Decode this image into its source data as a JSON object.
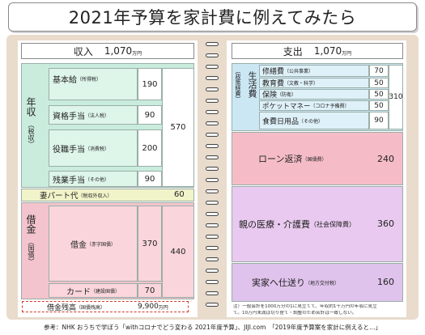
{
  "title": "2021年予算を家計費に例えてみたら",
  "income": {
    "header_label": "収入",
    "header_amount": "1,070",
    "unit": "万円",
    "section_annual": "年収",
    "section_annual_sub": "（税収）",
    "items": [
      {
        "label": "基本給",
        "note": "（所得税）",
        "value": "190"
      },
      {
        "label": "資格手当",
        "note": "（法人税）",
        "value": "90"
      },
      {
        "label": "役職手当",
        "note": "（消費税）",
        "value": "200"
      },
      {
        "label": "残業手当",
        "note": "（その他）",
        "value": "90"
      }
    ],
    "annual_total": "570",
    "part_label": "妻パート代",
    "part_note": "（税収外収入）",
    "part_value": "60",
    "debt_section": "借金",
    "debt_section_sub": "（国債）",
    "loan_label": "借金",
    "loan_note": "（赤字国債）",
    "loan_value": "370",
    "card_label": "カード",
    "card_note": "（建設国債）",
    "card_value": "70",
    "debt_total": "440",
    "balance_label": "借金残高",
    "balance_note": "（国債残高）",
    "balance_value": "9,900",
    "balance_unit": "万円"
  },
  "expense": {
    "header_label": "支出",
    "header_amount": "1,070",
    "unit": "万円",
    "living_section": "生活費",
    "living_section_sub": "（政策経費）",
    "living_items": [
      {
        "label": "修繕費",
        "note": "（公共事業）",
        "value": "70"
      },
      {
        "label": "教育費",
        "note": "（文教・科学）",
        "value": "50"
      },
      {
        "label": "保険",
        "note": "（防衛）",
        "value": "50"
      },
      {
        "label": "ポケットマネー",
        "note": "（コロナ予備費）",
        "value": "50"
      },
      {
        "label": "食費日用品",
        "note": "（その他）",
        "value": "90"
      }
    ],
    "living_total": "310",
    "loan_repay_label": "ローン返済",
    "loan_repay_note": "（国債費）",
    "loan_repay_value": "240",
    "care_label": "親の医療・介護費",
    "care_note": "（社会保障費）",
    "care_value": "360",
    "remit_label": "実家へ仕送り",
    "remit_note": "（地方交付税）",
    "remit_value": "160",
    "footnote_1": "注）一般会計を1000万分の1に見立てて、年収約1千万円の年収に見立",
    "footnote_2": "て。10万円未満は切り捨て・調整のため合計は一致しない。"
  },
  "footer": "参考：NHK おうちで学ぼう「withコロナでどう変わる 2021年度予算」、JIJI.com　「2019年度予算案を家計に例えると…」",
  "colors": {
    "income_green": "#c9ecdd",
    "income_light": "#def5ea",
    "part_yellow": "#f1f3c9",
    "debt_red": "#f3c4cd",
    "debt_light": "#fad6dc",
    "living_blue": "#cce7f4",
    "living_light": "#def0f8",
    "repay_red": "#f5bcc8",
    "care_purple": "#e9c9ef",
    "remit_purple": "#dfc3ec",
    "balance_border": "#d23a2f",
    "book": "#e9dccd"
  }
}
